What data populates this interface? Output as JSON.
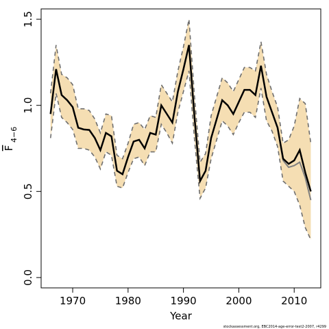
{
  "chart_data": {
    "type": "line",
    "xlabel": "Year",
    "ylabel": "F",
    "ylabel_sub": "4−6",
    "footnote": "stockassessment.org, EBC2014-age-error-test2-2007, r4299",
    "x": [
      1966,
      1967,
      1968,
      1969,
      1970,
      1971,
      1972,
      1973,
      1974,
      1975,
      1976,
      1977,
      1978,
      1979,
      1980,
      1981,
      1982,
      1983,
      1984,
      1985,
      1986,
      1987,
      1988,
      1989,
      1990,
      1991,
      1992,
      1993,
      1994,
      1995,
      1996,
      1997,
      1998,
      1999,
      2000,
      2001,
      2002,
      2003,
      2004,
      2005,
      2006,
      2007,
      2008,
      2009,
      2010,
      2011,
      2012,
      2013
    ],
    "band": {
      "color": "#f5deb3",
      "line_color": "#6e6e6e",
      "upper": [
        1.07,
        1.35,
        1.18,
        1.16,
        1.12,
        0.98,
        0.98,
        0.97,
        0.92,
        0.84,
        0.95,
        0.94,
        0.71,
        0.69,
        0.78,
        0.89,
        0.9,
        0.86,
        0.94,
        0.93,
        1.12,
        1.07,
        1.02,
        1.2,
        1.34,
        1.5,
        1.05,
        0.67,
        0.72,
        0.94,
        1.05,
        1.16,
        1.13,
        1.08,
        1.15,
        1.22,
        1.22,
        1.2,
        1.37,
        1.18,
        1.08,
        0.99,
        0.78,
        0.8,
        0.88,
        1.04,
        1.01,
        0.78
      ],
      "lower": [
        0.81,
        1.07,
        0.93,
        0.9,
        0.86,
        0.75,
        0.75,
        0.74,
        0.7,
        0.63,
        0.73,
        0.71,
        0.53,
        0.52,
        0.61,
        0.69,
        0.7,
        0.65,
        0.73,
        0.73,
        0.89,
        0.84,
        0.78,
        0.96,
        1.08,
        1.2,
        0.8,
        0.46,
        0.52,
        0.69,
        0.8,
        0.91,
        0.88,
        0.83,
        0.9,
        0.96,
        0.96,
        0.93,
        1.1,
        0.91,
        0.85,
        0.76,
        0.56,
        0.53,
        0.5,
        0.42,
        0.29,
        0.22
      ]
    },
    "series": [
      {
        "color": "#808080",
        "values": [
          0.95,
          1.21,
          1.06,
          1.03,
          0.99,
          0.87,
          0.86,
          0.857,
          0.81,
          0.74,
          0.84,
          0.82,
          0.62,
          0.6,
          0.7,
          0.79,
          0.8,
          0.75,
          0.84,
          0.83,
          1.0,
          0.95,
          0.9,
          1.08,
          1.21,
          1.35,
          0.93,
          0.56,
          0.62,
          0.81,
          0.92,
          1.03,
          1.0,
          0.95,
          1.02,
          1.09,
          1.09,
          1.06,
          1.23,
          1.05,
          0.96,
          0.87,
          0.68,
          0.64,
          0.65,
          0.67,
          0.58,
          0.45
        ]
      },
      {
        "color": "#000000",
        "values": [
          0.95,
          1.21,
          1.06,
          1.03,
          0.99,
          0.87,
          0.86,
          0.857,
          0.81,
          0.74,
          0.84,
          0.82,
          0.62,
          0.6,
          0.7,
          0.79,
          0.8,
          0.75,
          0.84,
          0.83,
          1.0,
          0.95,
          0.9,
          1.08,
          1.21,
          1.35,
          0.93,
          0.56,
          0.62,
          0.81,
          0.92,
          1.03,
          1.0,
          0.95,
          1.02,
          1.09,
          1.09,
          1.06,
          1.23,
          1.05,
          0.96,
          0.87,
          0.69,
          0.66,
          0.68,
          0.74,
          0.61,
          0.5
        ]
      }
    ],
    "xlim": [
      1964.3,
      2014.8
    ],
    "xticks": [
      1970,
      1980,
      1990,
      2000,
      2010
    ],
    "ylim": [
      -0.06,
      1.56
    ],
    "yticks": [
      {
        "value": 0,
        "label": "0.0"
      },
      0.5,
      {
        "value": 1,
        "label": "1.0"
      },
      1.5
    ]
  }
}
